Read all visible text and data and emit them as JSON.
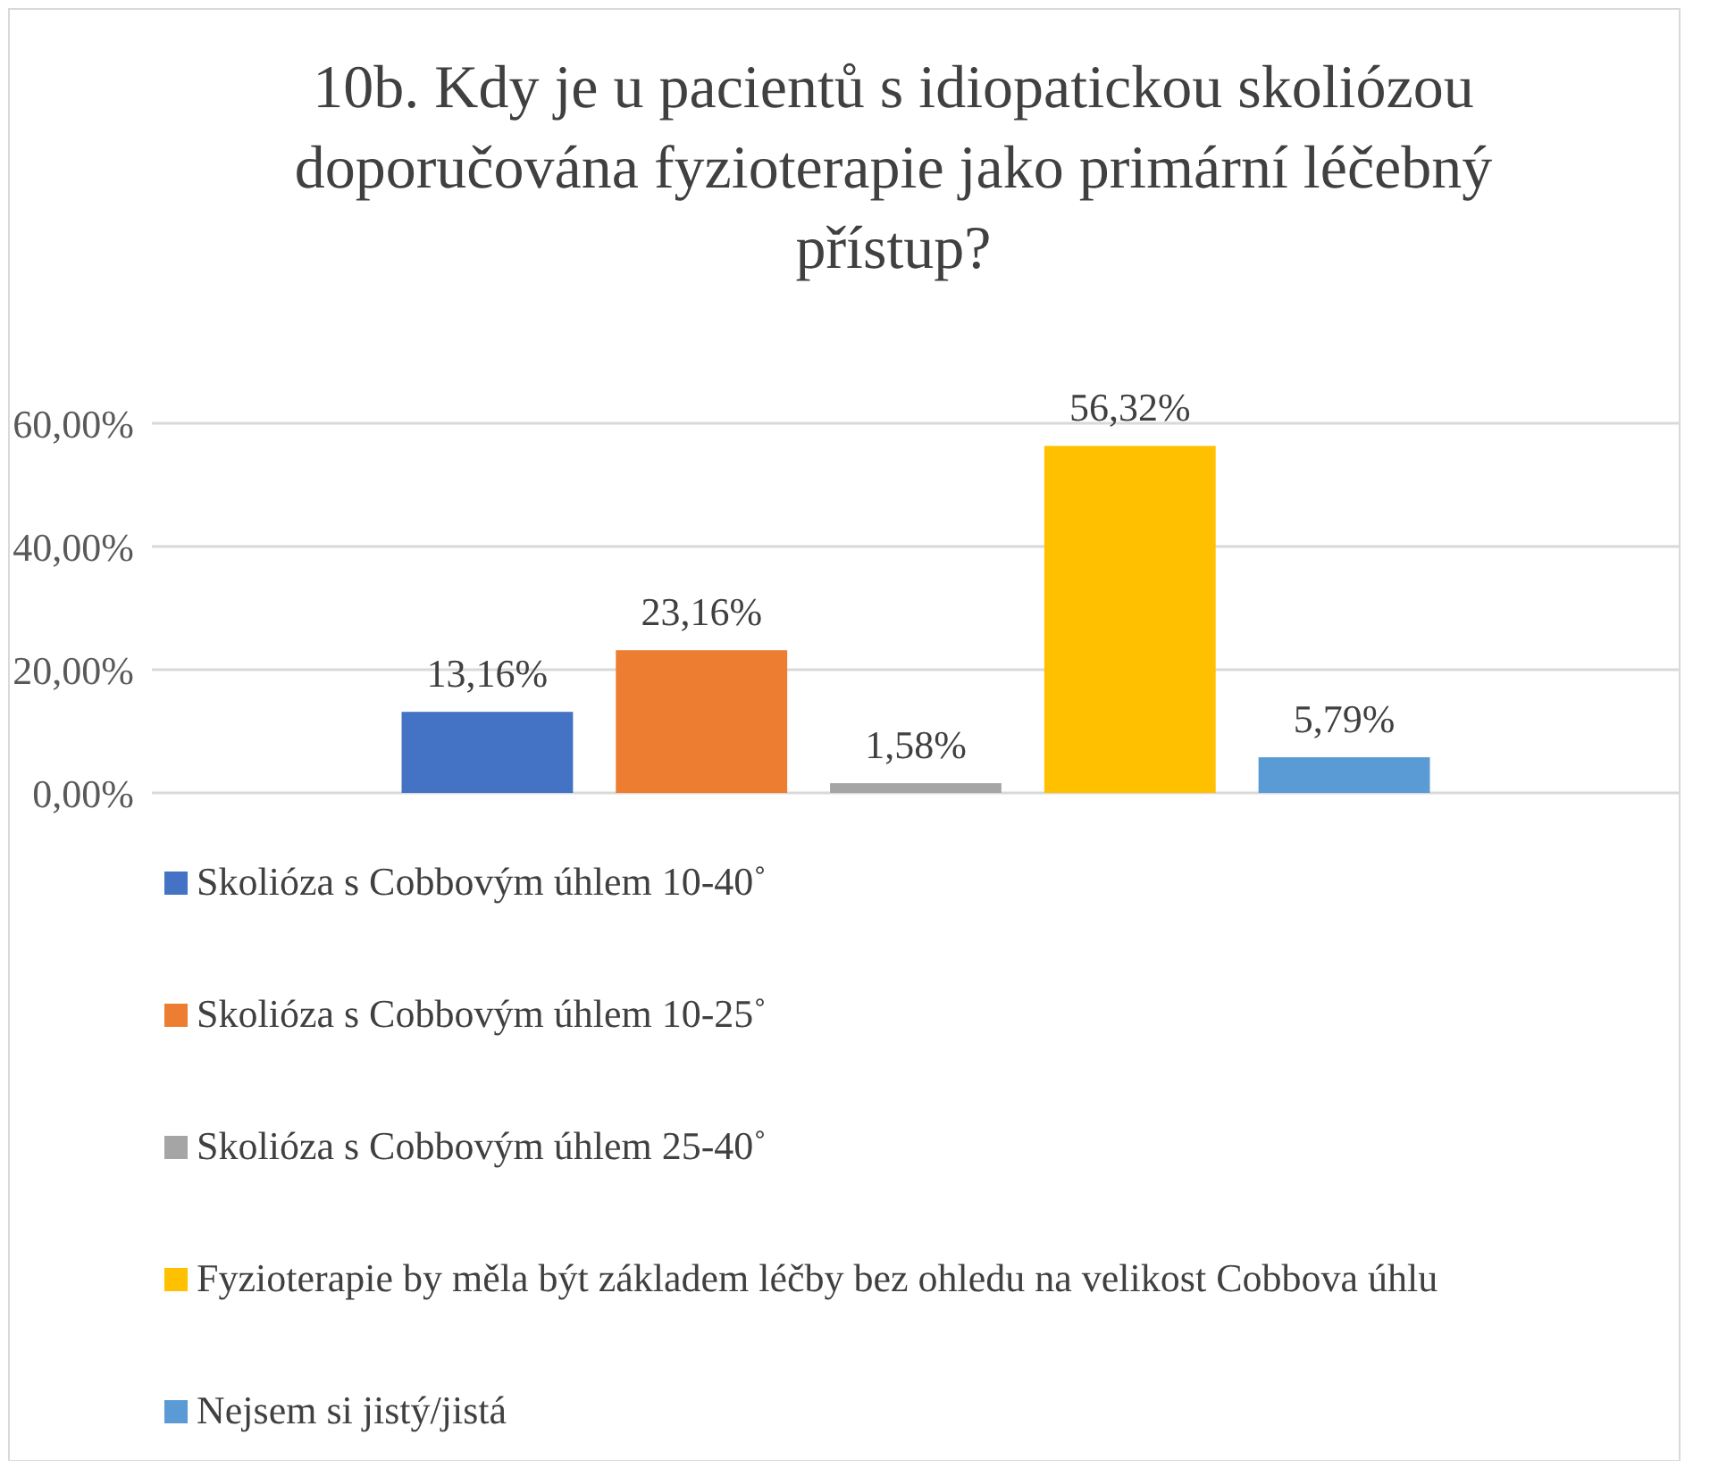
{
  "chart_data": {
    "type": "bar",
    "title": "10b. Kdy je u pacientů s idiopatickou skoliózou doporučována fyzioterapie jako primární léčebný přístup?",
    "categories": [
      null
    ],
    "series": [
      {
        "name": "Skolióza s Cobbovým úhlem 10-40˚",
        "color": "#4472c4",
        "values": [
          13.16
        ],
        "value_labels": [
          "13,16%"
        ]
      },
      {
        "name": "Skolióza s Cobbovým úhlem 10-25˚",
        "color": "#ed7d31",
        "values": [
          23.16
        ],
        "value_labels": [
          "23,16%"
        ]
      },
      {
        "name": "Skolióza s Cobbovým úhlem 25-40˚",
        "color": "#a5a5a5",
        "values": [
          1.58
        ],
        "value_labels": [
          "1,58%"
        ]
      },
      {
        "name": "Fyzioterapie by měla být základem léčby bez ohledu na velikost Cobbova úhlu",
        "color": "#ffc000",
        "values": [
          56.32
        ],
        "value_labels": [
          "56,32%"
        ]
      },
      {
        "name": "Nejsem si jistý/jistá",
        "color": "#5b9bd5",
        "values": [
          5.79
        ],
        "value_labels": [
          "5,79%"
        ]
      }
    ],
    "ylim": [
      0,
      60
    ],
    "yticks": [
      {
        "value": 0,
        "label": "0,00%"
      },
      {
        "value": 20,
        "label": "20,00%"
      },
      {
        "value": 40,
        "label": "40,00%"
      },
      {
        "value": 60,
        "label": "60,00%"
      }
    ],
    "grid": "y",
    "legend": "bottom"
  }
}
